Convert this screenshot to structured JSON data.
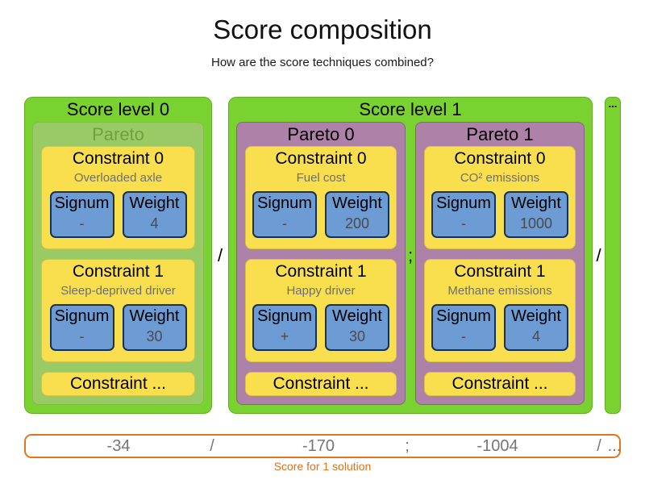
{
  "title": "Score composition",
  "subtitle": "How are the score techniques combined?",
  "levels": [
    {
      "label": "Score level 0",
      "paretos": [
        {
          "label": "Pareto",
          "constraints": [
            {
              "title": "Constraint 0",
              "description": "Overloaded axle",
              "signum_label": "Signum",
              "signum_value": "-",
              "weight_label": "Weight",
              "weight_value": "4"
            },
            {
              "title": "Constraint 1",
              "description": "Sleep-deprived driver",
              "signum_label": "Signum",
              "signum_value": "-",
              "weight_label": "Weight",
              "weight_value": "30"
            }
          ],
          "more_label": "Constraint ..."
        }
      ]
    },
    {
      "label": "Score level 1",
      "paretos": [
        {
          "label": "Pareto 0",
          "constraints": [
            {
              "title": "Constraint 0",
              "description": "Fuel cost",
              "signum_label": "Signum",
              "signum_value": "-",
              "weight_label": "Weight",
              "weight_value": "200"
            },
            {
              "title": "Constraint 1",
              "description": "Happy driver",
              "signum_label": "Signum",
              "signum_value": "+",
              "weight_label": "Weight",
              "weight_value": "30"
            }
          ],
          "more_label": "Constraint ..."
        },
        {
          "label": "Pareto 1",
          "constraints": [
            {
              "title": "Constraint 0",
              "description": "CO² emissions",
              "signum_label": "Signum",
              "signum_value": "-",
              "weight_label": "Weight",
              "weight_value": "1000"
            },
            {
              "title": "Constraint 1",
              "description": "Methane emissions",
              "signum_label": "Signum",
              "signum_value": "-",
              "weight_label": "Weight",
              "weight_value": "4"
            }
          ],
          "more_label": "Constraint ..."
        }
      ]
    }
  ],
  "separators": {
    "after_level0": "/",
    "between_paretos": ";",
    "after_level1": "/"
  },
  "ellipsis_box_label": "...",
  "score_bar": {
    "values": [
      "-34",
      "/",
      "-170",
      ";",
      "-1004",
      "/",
      "..."
    ],
    "caption": "Score for 1 solution"
  },
  "colors": {
    "level_green": "#79d22f",
    "pareto_faded_green": "#98cb66",
    "pareto_faded_text": "#6fa03d",
    "pareto_purple": "#ae81a9",
    "constraint_yellow": "#f9df4d",
    "chip_blue": "#6d9bd3",
    "chip_border": "#16324f",
    "description_gray": "#6e6e6e",
    "value_gray": "#4a4a4a",
    "score_number_gray": "#757575",
    "score_bar_border_orange": "#e2761b",
    "caption_orange": "#e0701a"
  }
}
